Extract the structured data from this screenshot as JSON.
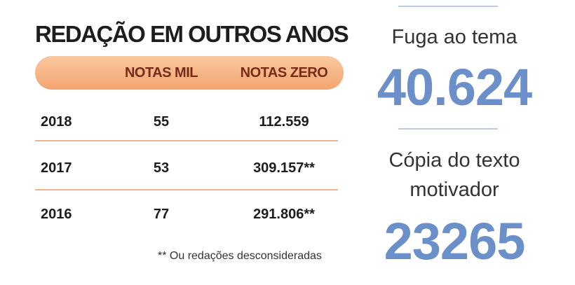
{
  "table": {
    "title": "REDAÇÃO EM OUTROS ANOS",
    "header": [
      "NOTAS MIL",
      "NOTAS ZERO"
    ],
    "rows": [
      [
        "2018",
        "55",
        "112.559"
      ],
      [
        "2017",
        "53",
        "309.157**"
      ],
      [
        "2016",
        "77",
        "291.806**"
      ]
    ],
    "footnote": "** Ou redações desconsideradas"
  },
  "stats": [
    {
      "label": "Fuga ao tema",
      "value": "40.624"
    },
    {
      "label": "Cópia do texto motivador",
      "value": "23265"
    }
  ]
}
